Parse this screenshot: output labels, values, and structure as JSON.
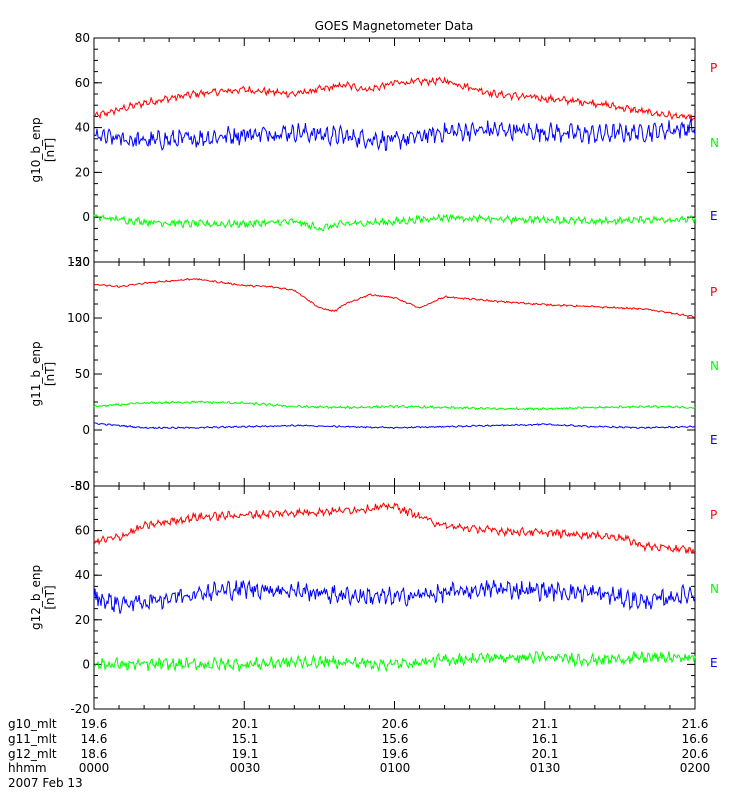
{
  "chart_data": {
    "type": "line",
    "title": "GOES Magnetometer Data",
    "date": "2007 Feb 13",
    "x_rows": [
      {
        "label": "g10_mlt",
        "ticks": [
          "19.6",
          "20.1",
          "20.6",
          "21.1",
          "21.6"
        ]
      },
      {
        "label": "g11_mlt",
        "ticks": [
          "14.6",
          "15.1",
          "15.6",
          "16.1",
          "16.6"
        ]
      },
      {
        "label": "g12_mlt",
        "ticks": [
          "18.6",
          "19.1",
          "19.6",
          "20.1",
          "20.6"
        ]
      },
      {
        "label": "hhmm",
        "ticks": [
          "0000",
          "0030",
          "0100",
          "0130",
          "0200"
        ]
      }
    ],
    "xlim_minutes": [
      0,
      120
    ],
    "colors": {
      "P": "#ff0000",
      "N": "#00ff00",
      "E": "#0000ff"
    },
    "panels": [
      {
        "ylabel": "g10_b_enp",
        "units": "[nT]",
        "ylim": [
          -20,
          80
        ],
        "yticks": [
          "80",
          "60",
          "40",
          "20",
          "0",
          "-20"
        ],
        "legend": [
          "P",
          "N",
          "E"
        ],
        "series": [
          {
            "name": "P",
            "noise": 1.2,
            "t": [
              0,
              5,
              10,
              20,
              30,
              40,
              50,
              55,
              60,
              70,
              80,
              90,
              100,
              110,
              120
            ],
            "values": [
              45,
              48,
              51,
              55,
              57,
              55,
              59,
              57,
              60,
              61,
              55,
              53,
              51,
              47,
              44
            ]
          },
          {
            "name": "E",
            "noise": 3,
            "t": [
              0,
              10,
              20,
              30,
              40,
              50,
              60,
              70,
              80,
              90,
              100,
              110,
              120
            ],
            "values": [
              36,
              34,
              35,
              37,
              38,
              36,
              34,
              38,
              39,
              38,
              37,
              38,
              40
            ]
          },
          {
            "name": "N",
            "noise": 1.2,
            "t": [
              0,
              10,
              20,
              30,
              40,
              45,
              50,
              60,
              70,
              80,
              90,
              100,
              110,
              120
            ],
            "values": [
              0,
              -2,
              -3,
              -3,
              -2,
              -5,
              -3,
              -2,
              0,
              -1,
              -1,
              -2,
              -1,
              -1
            ]
          }
        ]
      },
      {
        "ylabel": "g11_b_enp",
        "units": "[nT]",
        "ylim": [
          -50,
          150
        ],
        "yticks": [
          "150",
          "100",
          "50",
          "0",
          "-50"
        ],
        "legend": [
          "P",
          "N",
          "E"
        ],
        "series": [
          {
            "name": "P",
            "noise": 0.6,
            "t": [
              0,
              5,
              10,
              20,
              30,
              35,
              40,
              45,
              48,
              50,
              55,
              60,
              65,
              70,
              75,
              80,
              90,
              100,
              110,
              120
            ],
            "values": [
              130,
              128,
              131,
              135,
              129,
              128,
              125,
              109,
              106,
              112,
              121,
              118,
              109,
              119,
              117,
              115,
              112,
              110,
              108,
              101
            ]
          },
          {
            "name": "N",
            "noise": 0.8,
            "t": [
              0,
              10,
              20,
              30,
              40,
              50,
              60,
              70,
              80,
              90,
              100,
              110,
              120
            ],
            "values": [
              21,
              24,
              25,
              24,
              21,
              20,
              21,
              20,
              19,
              19,
              20,
              21,
              20
            ]
          },
          {
            "name": "E",
            "noise": 0.5,
            "t": [
              0,
              10,
              20,
              30,
              40,
              50,
              60,
              70,
              80,
              90,
              100,
              110,
              120
            ],
            "values": [
              6,
              2,
              2,
              3,
              4,
              3,
              2,
              3,
              4,
              5,
              3,
              2,
              3
            ]
          }
        ]
      },
      {
        "ylabel": "g12_b_enp",
        "units": "[nT]",
        "ylim": [
          -20,
          80
        ],
        "yticks": [
          "80",
          "60",
          "40",
          "20",
          "0",
          "-20"
        ],
        "legend": [
          "P",
          "N",
          "E"
        ],
        "series": [
          {
            "name": "P",
            "noise": 1.3,
            "t": [
              0,
              5,
              10,
              15,
              20,
              30,
              40,
              50,
              55,
              60,
              62,
              70,
              80,
              90,
              100,
              105,
              110,
              120
            ],
            "values": [
              55,
              57,
              62,
              64,
              66,
              67,
              68,
              69,
              70,
              71,
              69,
              62,
              60,
              59,
              58,
              57,
              53,
              51
            ]
          },
          {
            "name": "E",
            "noise": 3,
            "t": [
              0,
              5,
              10,
              20,
              30,
              40,
              50,
              60,
              70,
              80,
              90,
              100,
              110,
              120
            ],
            "values": [
              30,
              27,
              28,
              32,
              34,
              33,
              31,
              30,
              32,
              34,
              33,
              32,
              28,
              32
            ]
          },
          {
            "name": "N",
            "noise": 2,
            "t": [
              0,
              10,
              20,
              30,
              40,
              50,
              60,
              70,
              80,
              90,
              100,
              110,
              120
            ],
            "values": [
              0,
              0,
              0,
              0,
              1,
              1,
              0,
              2,
              3,
              3,
              2,
              3,
              3
            ]
          }
        ]
      }
    ]
  }
}
